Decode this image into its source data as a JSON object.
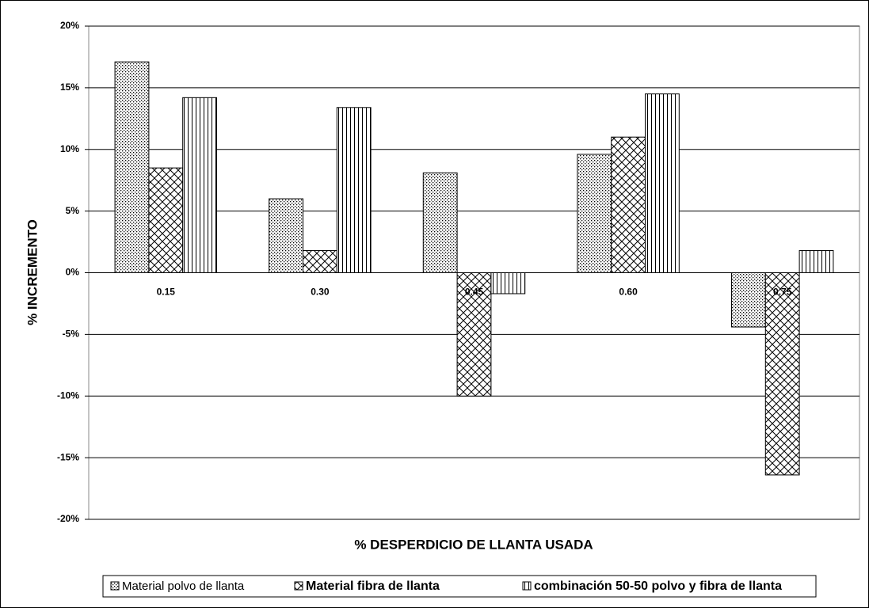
{
  "chart_data": {
    "type": "bar",
    "x_label": "% DESPERDICIO DE LLANTA USADA",
    "y_label": "% INCREMENTO",
    "categories": [
      "0.15",
      "0.30",
      "0.45",
      "0.60",
      "0.75"
    ],
    "series": [
      {
        "name": "Material polvo de llanta",
        "color": "#000000",
        "pattern": "dots",
        "values": [
          17.1,
          6.0,
          8.1,
          9.6,
          -4.4
        ]
      },
      {
        "name": "Material fibra de llanta",
        "color": "#000000",
        "pattern": "crosshatch",
        "values": [
          8.5,
          1.8,
          -10.0,
          11.0,
          -16.4
        ]
      },
      {
        "name": "combinación 50-50 polvo y fibra de llanta",
        "color": "#000000",
        "pattern": "vertical",
        "values": [
          14.2,
          13.4,
          -1.7,
          14.5,
          1.8
        ]
      }
    ],
    "ylim": [
      -20,
      20
    ],
    "yticks": [
      {
        "value": -20,
        "label": "-20%"
      },
      {
        "value": -15,
        "label": "-15%"
      },
      {
        "value": -10,
        "label": "-10%"
      },
      {
        "value": -5,
        "label": "-5%"
      },
      {
        "value": 0,
        "label": "0%"
      },
      {
        "value": 5,
        "label": "5%"
      },
      {
        "value": 10,
        "label": "10%"
      },
      {
        "value": 15,
        "label": "15%"
      },
      {
        "value": 20,
        "label": "20%"
      }
    ],
    "grid": true,
    "legend": "bottom"
  }
}
